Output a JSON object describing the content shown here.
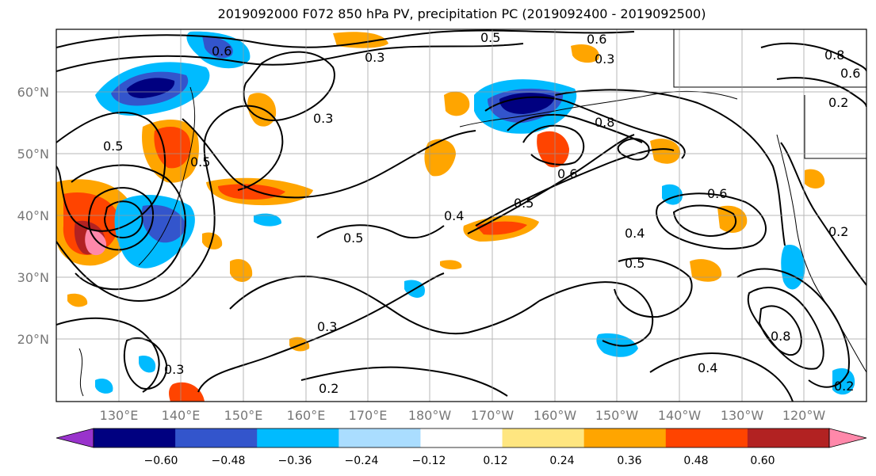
{
  "title": "2019092000 F072 850 hPa PV, precipitation PC (2019092400 - 2019092500)",
  "lat_labels": [
    "60°N",
    "50°N",
    "40°N",
    "30°N",
    "20°N"
  ],
  "lon_labels": [
    "130°E",
    "140°E",
    "150°E",
    "160°E",
    "170°E",
    "180°W",
    "170°W",
    "160°W",
    "150°W",
    "140°W",
    "130°W",
    "120°W"
  ],
  "colorbar": {
    "ticks": [
      "−0.60",
      "−0.48",
      "−0.36",
      "−0.24",
      "−0.12",
      "0.12",
      "0.24",
      "0.36",
      "0.48",
      "0.60"
    ],
    "colors": [
      "#9933cc",
      "#000080",
      "#3355cc",
      "#00bbff",
      "#aaddff",
      "#ffffff",
      "#ffe680",
      "#ffa500",
      "#ff4400",
      "#b22222",
      "#ff88aa"
    ]
  },
  "contour_labels": [
    "0.6",
    "0.3",
    "0.5",
    "0.6",
    "0.3",
    "0.8",
    "0.6",
    "0.3",
    "0.5",
    "0.2",
    "0.8",
    "0.5",
    "0.6",
    "0.4",
    "0.5",
    "0.6",
    "0.4",
    "0.5",
    "0.5",
    "0.3",
    "0.2",
    "0.8",
    "0.4",
    "0.2",
    "0.2",
    "0.3"
  ]
}
